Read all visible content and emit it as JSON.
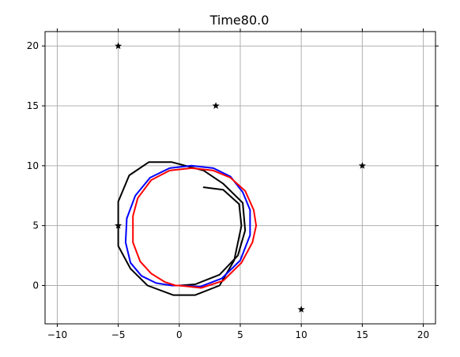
{
  "chart_data": {
    "type": "line",
    "title": "Time80.0",
    "xlabel": "",
    "ylabel": "",
    "xlim": [
      -11,
      21
    ],
    "ylim": [
      -3.2,
      21.2
    ],
    "grid": true,
    "x_ticks": [
      -10,
      -5,
      0,
      5,
      10,
      15,
      20
    ],
    "y_ticks": [
      0,
      5,
      10,
      15,
      20
    ],
    "x_tick_labels": [
      "−10",
      "−5",
      "0",
      "5",
      "10",
      "15",
      "20"
    ],
    "y_tick_labels": [
      "0",
      "5",
      "10",
      "15",
      "20"
    ],
    "colors": {
      "landmarks": "#000000",
      "black_path": "#000000",
      "blue_path": "#0000ff",
      "red_path": "#ff0000",
      "grid": "#b0b0b0",
      "axes": "#000000"
    },
    "landmarks": {
      "marker": "star",
      "points": [
        {
          "x": -5,
          "y": 20
        },
        {
          "x": 3,
          "y": 15
        },
        {
          "x": 15,
          "y": 10
        },
        {
          "x": -5,
          "y": 5
        },
        {
          "x": 10,
          "y": -2
        }
      ]
    },
    "series": [
      {
        "color": "black",
        "x": [
          0,
          1.3,
          3.3,
          4.8,
          5.4,
          5.2,
          3.6,
          2.0,
          -0.6,
          -2.5,
          -4.1,
          -5.0,
          -5.0,
          -4.0,
          -2.6,
          -0.5,
          1.3,
          3.3,
          4.5,
          5.1,
          4.9,
          3.6,
          2.0
        ],
        "y": [
          0,
          0.1,
          0.9,
          2.5,
          4.6,
          6.9,
          8.5,
          9.6,
          10.3,
          10.3,
          9.2,
          7.0,
          3.3,
          1.4,
          0.0,
          -0.8,
          -0.8,
          0.0,
          2.1,
          5.0,
          6.8,
          8.0,
          8.2
        ]
      },
      {
        "color": "blue",
        "x": [
          0,
          1.7,
          3.5,
          5.0,
          5.8,
          5.8,
          5.2,
          4.2,
          2.8,
          1.0,
          -0.8,
          -2.4,
          -3.6,
          -4.3,
          -4.4,
          -4.0,
          -3.1,
          -1.9,
          -0.6,
          0
        ],
        "y": [
          0,
          -0.1,
          0.6,
          2.1,
          4.2,
          6.3,
          7.8,
          9.1,
          9.8,
          10.0,
          9.8,
          9.0,
          7.5,
          5.6,
          3.6,
          1.9,
          0.8,
          0.2,
          0.0,
          0
        ]
      },
      {
        "color": "red",
        "x": [
          0,
          1.8,
          3.6,
          5.1,
          6.0,
          6.3,
          6.1,
          5.4,
          4.2,
          2.8,
          1.0,
          -0.8,
          -2.3,
          -3.4,
          -3.8,
          -3.8,
          -3.2,
          -2.3,
          -1.2,
          -0.3,
          0
        ],
        "y": [
          0,
          -0.2,
          0.4,
          1.9,
          3.6,
          5.0,
          6.3,
          7.9,
          9.0,
          9.6,
          9.8,
          9.6,
          8.8,
          7.3,
          5.8,
          3.6,
          2.0,
          1.0,
          0.3,
          0.0,
          0
        ]
      }
    ]
  }
}
